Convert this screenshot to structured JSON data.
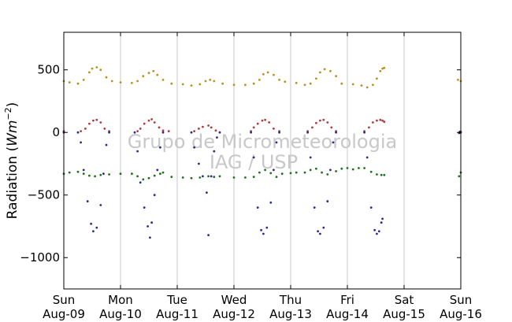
{
  "chart_data": {
    "type": "scatter",
    "ylabel": "Radiation (Wm⁻²)",
    "ylabel_prefix": "Radiation (",
    "ylabel_unit": "Wm",
    "ylabel_exp": "−2",
    "ylabel_suffix": ")",
    "watermark": [
      "Grupo de Micrometeorologia",
      "IAG / USP"
    ],
    "xlim_days": [
      0,
      7
    ],
    "ylim": [
      -1250,
      800
    ],
    "grid": "vertical",
    "yticks": [
      {
        "value": 500,
        "label": "500"
      },
      {
        "value": 0,
        "label": "0"
      },
      {
        "value": -500,
        "label": "−500"
      },
      {
        "value": -1000,
        "label": "−1000"
      }
    ],
    "xticks": [
      {
        "day": 0,
        "dow": "Sun",
        "date": "Aug-09"
      },
      {
        "day": 1,
        "dow": "Mon",
        "date": "Aug-10"
      },
      {
        "day": 2,
        "dow": "Tue",
        "date": "Aug-11"
      },
      {
        "day": 3,
        "dow": "Wed",
        "date": "Aug-12"
      },
      {
        "day": 4,
        "dow": "Thu",
        "date": "Aug-13"
      },
      {
        "day": 5,
        "dow": "Fri",
        "date": "Aug-14"
      },
      {
        "day": 6,
        "dow": "Sat",
        "date": "Aug-15"
      },
      {
        "day": 7,
        "dow": "Sun",
        "date": "Aug-16"
      }
    ],
    "series": [
      {
        "key": "longwave_in",
        "color": "#b8921e",
        "points": [
          [
            0,
            410
          ],
          [
            0.1,
            400
          ],
          [
            0.25,
            390
          ],
          [
            0.35,
            420
          ],
          [
            0.45,
            480
          ],
          [
            0.5,
            510
          ],
          [
            0.58,
            520
          ],
          [
            0.65,
            500
          ],
          [
            0.75,
            440
          ],
          [
            0.85,
            410
          ],
          [
            1.0,
            400
          ],
          [
            1.2,
            395
          ],
          [
            1.3,
            410
          ],
          [
            1.4,
            450
          ],
          [
            1.5,
            475
          ],
          [
            1.58,
            490
          ],
          [
            1.65,
            460
          ],
          [
            1.75,
            420
          ],
          [
            1.9,
            390
          ],
          [
            2.1,
            385
          ],
          [
            2.25,
            375
          ],
          [
            2.4,
            385
          ],
          [
            2.5,
            410
          ],
          [
            2.58,
            420
          ],
          [
            2.65,
            410
          ],
          [
            2.8,
            390
          ],
          [
            3.0,
            380
          ],
          [
            3.2,
            380
          ],
          [
            3.35,
            390
          ],
          [
            3.45,
            420
          ],
          [
            3.52,
            465
          ],
          [
            3.6,
            480
          ],
          [
            3.7,
            460
          ],
          [
            3.8,
            420
          ],
          [
            3.9,
            405
          ],
          [
            4.1,
            395
          ],
          [
            4.25,
            380
          ],
          [
            4.35,
            390
          ],
          [
            4.45,
            430
          ],
          [
            4.52,
            480
          ],
          [
            4.6,
            505
          ],
          [
            4.7,
            490
          ],
          [
            4.8,
            450
          ],
          [
            4.9,
            390
          ],
          [
            5.1,
            385
          ],
          [
            5.25,
            375
          ],
          [
            5.35,
            360
          ],
          [
            5.45,
            380
          ],
          [
            5.52,
            430
          ],
          [
            5.58,
            490
          ],
          [
            5.62,
            510
          ],
          [
            5.65,
            515
          ],
          [
            6.95,
            420
          ],
          [
            7.0,
            410
          ]
        ]
      },
      {
        "key": "longwave_out",
        "color": "#b03c3c",
        "points": [
          [
            0,
            10
          ],
          [
            0.3,
            10
          ],
          [
            0.38,
            30
          ],
          [
            0.45,
            70
          ],
          [
            0.52,
            95
          ],
          [
            0.58,
            100
          ],
          [
            0.65,
            80
          ],
          [
            0.72,
            30
          ],
          [
            0.8,
            10
          ],
          [
            1.3,
            10
          ],
          [
            1.35,
            30
          ],
          [
            1.42,
            70
          ],
          [
            1.5,
            95
          ],
          [
            1.55,
            105
          ],
          [
            1.6,
            80
          ],
          [
            1.68,
            40
          ],
          [
            1.75,
            15
          ],
          [
            1.85,
            10
          ],
          [
            2.3,
            10
          ],
          [
            2.38,
            30
          ],
          [
            2.45,
            45
          ],
          [
            2.55,
            55
          ],
          [
            2.6,
            40
          ],
          [
            2.68,
            15
          ],
          [
            3.3,
            10
          ],
          [
            3.35,
            40
          ],
          [
            3.42,
            70
          ],
          [
            3.5,
            95
          ],
          [
            3.55,
            100
          ],
          [
            3.62,
            80
          ],
          [
            3.7,
            30
          ],
          [
            3.8,
            10
          ],
          [
            4.3,
            10
          ],
          [
            4.38,
            40
          ],
          [
            4.45,
            75
          ],
          [
            4.52,
            95
          ],
          [
            4.58,
            100
          ],
          [
            4.65,
            80
          ],
          [
            4.72,
            40
          ],
          [
            4.8,
            10
          ],
          [
            5.3,
            10
          ],
          [
            5.38,
            40
          ],
          [
            5.45,
            80
          ],
          [
            5.52,
            95
          ],
          [
            5.58,
            100
          ],
          [
            5.62,
            95
          ],
          [
            5.65,
            85
          ],
          [
            6.98,
            5
          ],
          [
            7.0,
            5
          ]
        ]
      },
      {
        "key": "net",
        "color": "#000000",
        "points": [
          [
            0,
            0
          ],
          [
            5.65,
            0
          ],
          [
            6.97,
            0
          ],
          [
            7.0,
            0
          ]
        ]
      },
      {
        "key": "shortwave",
        "color": "#2a2a8c",
        "points": [
          [
            0,
            0
          ],
          [
            0.25,
            0
          ],
          [
            0.3,
            -80
          ],
          [
            0.35,
            -300
          ],
          [
            0.42,
            -550
          ],
          [
            0.48,
            -730
          ],
          [
            0.52,
            -790
          ],
          [
            0.58,
            -760
          ],
          [
            0.65,
            -580
          ],
          [
            0.7,
            -330
          ],
          [
            0.75,
            -100
          ],
          [
            0.8,
            0
          ],
          [
            1.25,
            0
          ],
          [
            1.3,
            -150
          ],
          [
            1.35,
            -400
          ],
          [
            1.42,
            -600
          ],
          [
            1.48,
            -750
          ],
          [
            1.52,
            -840
          ],
          [
            1.55,
            -720
          ],
          [
            1.6,
            -500
          ],
          [
            1.65,
            -300
          ],
          [
            1.7,
            -120
          ],
          [
            1.75,
            0
          ],
          [
            2.25,
            0
          ],
          [
            2.3,
            -120
          ],
          [
            2.38,
            -250
          ],
          [
            2.45,
            -350
          ],
          [
            2.52,
            -480
          ],
          [
            2.55,
            -820
          ],
          [
            2.6,
            -350
          ],
          [
            2.65,
            -150
          ],
          [
            2.7,
            -40
          ],
          [
            2.75,
            0
          ],
          [
            3.3,
            0
          ],
          [
            3.35,
            -200
          ],
          [
            3.42,
            -600
          ],
          [
            3.48,
            -780
          ],
          [
            3.52,
            -810
          ],
          [
            3.58,
            -760
          ],
          [
            3.65,
            -560
          ],
          [
            3.7,
            -300
          ],
          [
            3.75,
            -80
          ],
          [
            3.8,
            0
          ],
          [
            4.3,
            0
          ],
          [
            4.35,
            -200
          ],
          [
            4.42,
            -600
          ],
          [
            4.48,
            -790
          ],
          [
            4.52,
            -810
          ],
          [
            4.58,
            -760
          ],
          [
            4.65,
            -550
          ],
          [
            4.7,
            -300
          ],
          [
            4.75,
            -80
          ],
          [
            4.8,
            0
          ],
          [
            5.3,
            0
          ],
          [
            5.35,
            -200
          ],
          [
            5.42,
            -600
          ],
          [
            5.48,
            -780
          ],
          [
            5.52,
            -810
          ],
          [
            5.56,
            -790
          ],
          [
            5.6,
            -720
          ],
          [
            5.62,
            -690
          ],
          [
            6.97,
            -5
          ],
          [
            7.0,
            0
          ]
        ]
      },
      {
        "key": "ground",
        "color": "#207020",
        "points": [
          [
            0,
            -330
          ],
          [
            0.1,
            -320
          ],
          [
            0.25,
            -315
          ],
          [
            0.35,
            -330
          ],
          [
            0.45,
            -345
          ],
          [
            0.55,
            -350
          ],
          [
            0.65,
            -340
          ],
          [
            0.8,
            -335
          ],
          [
            1.0,
            -330
          ],
          [
            1.2,
            -330
          ],
          [
            1.3,
            -350
          ],
          [
            1.4,
            -375
          ],
          [
            1.5,
            -365
          ],
          [
            1.6,
            -345
          ],
          [
            1.7,
            -330
          ],
          [
            1.75,
            -320
          ],
          [
            1.9,
            -355
          ],
          [
            2.1,
            -360
          ],
          [
            2.25,
            -365
          ],
          [
            2.4,
            -360
          ],
          [
            2.55,
            -350
          ],
          [
            2.65,
            -355
          ],
          [
            2.75,
            -350
          ],
          [
            3.0,
            -360
          ],
          [
            3.2,
            -360
          ],
          [
            3.35,
            -355
          ],
          [
            3.45,
            -320
          ],
          [
            3.55,
            -300
          ],
          [
            3.65,
            -325
          ],
          [
            3.75,
            -355
          ],
          [
            3.85,
            -330
          ],
          [
            4.0,
            -325
          ],
          [
            4.1,
            -320
          ],
          [
            4.25,
            -320
          ],
          [
            4.35,
            -300
          ],
          [
            4.45,
            -290
          ],
          [
            4.55,
            -320
          ],
          [
            4.65,
            -335
          ],
          [
            4.8,
            -310
          ],
          [
            4.9,
            -290
          ],
          [
            5.0,
            -285
          ],
          [
            5.1,
            -295
          ],
          [
            5.2,
            -285
          ],
          [
            5.3,
            -285
          ],
          [
            5.42,
            -315
          ],
          [
            5.52,
            -335
          ],
          [
            5.6,
            -340
          ],
          [
            5.65,
            -340
          ],
          [
            6.97,
            -350
          ],
          [
            7.0,
            -320
          ]
        ]
      }
    ]
  }
}
